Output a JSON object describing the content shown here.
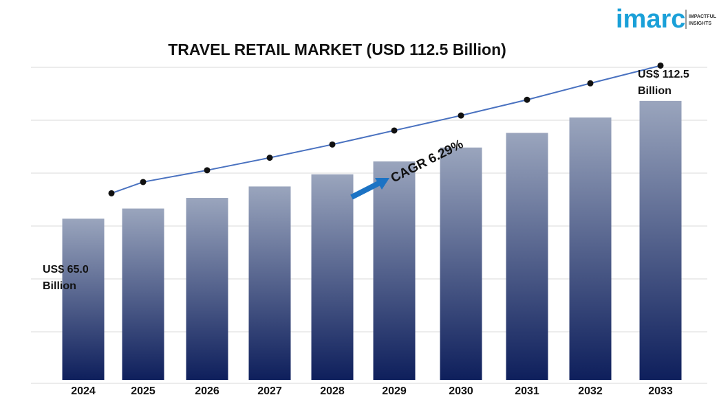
{
  "logo": {
    "word": "imarc",
    "tagline_line1": "IMPACTFUL",
    "tagline_line2": "INSIGHTS",
    "color": "#1aa0d8"
  },
  "chart_data": {
    "type": "bar",
    "title": "TRAVEL RETAIL MARKET (USD 112.5 Billion)",
    "categories": [
      "2024",
      "2025",
      "2026",
      "2027",
      "2028",
      "2029",
      "2030",
      "2031",
      "2032",
      "2033"
    ],
    "values": [
      65.0,
      69.1,
      73.4,
      78.0,
      82.9,
      88.1,
      93.7,
      99.6,
      105.8,
      112.5
    ],
    "trend_line": true,
    "ylim": [
      0,
      130
    ],
    "grid": true,
    "y_axis_labels_shown": false,
    "annotations": {
      "start": {
        "line1": "US$ 65.0",
        "line2": "Billion"
      },
      "end": {
        "line1": "US$ 112.5",
        "line2": "Billion"
      },
      "cagr": "CAGR 6.29%"
    },
    "colors": {
      "bar_top": "#9aa5bd",
      "bar_bottom": "#0e1f5c",
      "line": "#4a72c0",
      "marker": "#111111",
      "arrow": "#1c73c4",
      "grid": "#d9d9d9"
    }
  }
}
